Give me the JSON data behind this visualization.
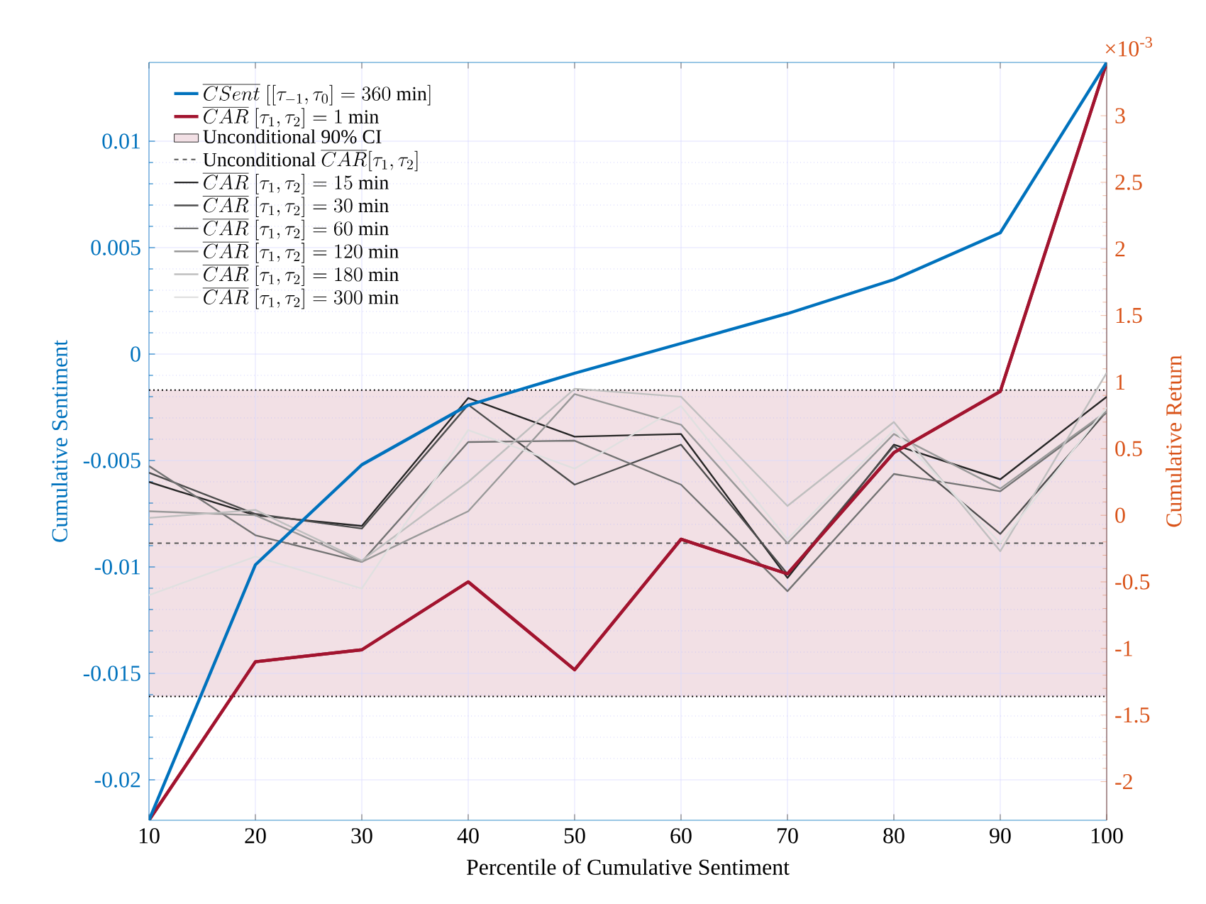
{
  "chart_data": {
    "type": "line",
    "xlabel": "Percentile of Cumulative Sentiment",
    "ylabel": "Cumulative Sentiment",
    "y2label": "Cumulative Return",
    "x": [
      10,
      20,
      30,
      40,
      50,
      60,
      70,
      80,
      90,
      100
    ],
    "series": [
      {
        "name": "\\overline{CSent}\\ [[\\tau_{-1},\\tau_0]=360\\ \\mathrm{min}]",
        "color": "#0072bd",
        "values": [
          -0.0219,
          -0.0099,
          -0.0052,
          -0.0024,
          -0.0009,
          0.0005,
          0.0019,
          0.0035,
          0.0057,
          0.0137
        ]
      },
      {
        "name": "\\overline{CAR}\\ [\\tau_1,\\tau_2]=1\\ \\mathrm{min}",
        "color": "#a2142f",
        "axis": "y2",
        "values": [
          -2.29,
          -1.1,
          -1.01,
          -0.5,
          -1.16,
          -0.18,
          -0.44,
          0.47,
          0.93,
          3.4
        ]
      },
      {
        "name": "\\overline{CAR}\\ [\\tau_1,\\tau_2]=15\\ \\mathrm{min}",
        "color": "#262626",
        "axis": "y2",
        "values": [
          0.25,
          0.0,
          -0.08,
          0.88,
          0.59,
          0.61,
          -0.47,
          0.53,
          0.27,
          0.89
        ]
      },
      {
        "name": "\\overline{CAR}\\ [\\tau_1,\\tau_2]=30\\ \\mathrm{min}",
        "color": "#4d4d4d",
        "axis": "y2",
        "values": [
          0.32,
          0.01,
          -0.1,
          0.83,
          0.23,
          0.53,
          -0.44,
          0.52,
          -0.14,
          0.78
        ]
      },
      {
        "name": "\\overline{CAR}\\ [\\tau_1,\\tau_2]=60\\ \\mathrm{min}",
        "color": "#737373",
        "axis": "y2",
        "values": [
          0.37,
          -0.15,
          -0.35,
          0.55,
          0.56,
          0.23,
          -0.57,
          0.31,
          0.18,
          0.77
        ]
      },
      {
        "name": "\\overline{CAR}\\ [\\tau_1,\\tau_2]=120\\ \\mathrm{min}",
        "color": "#999999",
        "axis": "y2",
        "values": [
          0.03,
          0.0,
          -0.35,
          0.03,
          0.91,
          0.68,
          -0.21,
          0.61,
          0.2,
          0.78
        ]
      },
      {
        "name": "\\overline{CAR}\\ [\\tau_1,\\tau_2]=180\\ \\mathrm{min}",
        "color": "#bfbfbf",
        "axis": "y2",
        "values": [
          -0.02,
          0.04,
          -0.34,
          0.25,
          0.95,
          0.89,
          0.07,
          0.7,
          -0.27,
          1.07
        ]
      },
      {
        "name": "\\overline{CAR}\\ [\\tau_1,\\tau_2]=300\\ \\mathrm{min}",
        "color": "#e0e0e0",
        "axis": "y2",
        "values": [
          -0.6,
          -0.31,
          -0.55,
          0.64,
          0.35,
          0.82,
          -0.18,
          0.64,
          -0.21,
          0.81
        ]
      }
    ],
    "bands": [
      {
        "axis": "y2",
        "from": -1.36,
        "to": 0.94,
        "label": "\\mathrm{Unconditional\\ 90\\%\\ CI}",
        "color": "#f2e0e5"
      }
    ],
    "ref_lines": [
      {
        "axis": "y2",
        "value": -0.21,
        "label": "\\mathrm{Unconditional}\\ \\overline{CAR}[\\tau_1,\\tau_2]",
        "color": "#555555",
        "line_style": "dashed"
      },
      {
        "axis": "y2",
        "value": 0.94,
        "color": "#000000",
        "line_style": "dotted"
      },
      {
        "axis": "y2",
        "value": -1.36,
        "color": "#000000",
        "line_style": "dotted"
      }
    ],
    "xlim": [
      10,
      100
    ],
    "xticks": [
      10,
      20,
      30,
      40,
      50,
      60,
      70,
      80,
      90,
      100
    ],
    "ylim": [
      -0.0219,
      0.0137
    ],
    "yticks": [
      -0.02,
      -0.015,
      -0.01,
      -0.005,
      0,
      0.005,
      0.01
    ],
    "y2lim": [
      -2.29,
      3.4
    ],
    "y2ticks": [
      -2,
      -1.5,
      -1,
      -0.5,
      0,
      0.5,
      1,
      1.5,
      2,
      2.5,
      3
    ],
    "annotations": [
      "×10$^{-3}$"
    ],
    "grid": true,
    "legend": "top left"
  }
}
